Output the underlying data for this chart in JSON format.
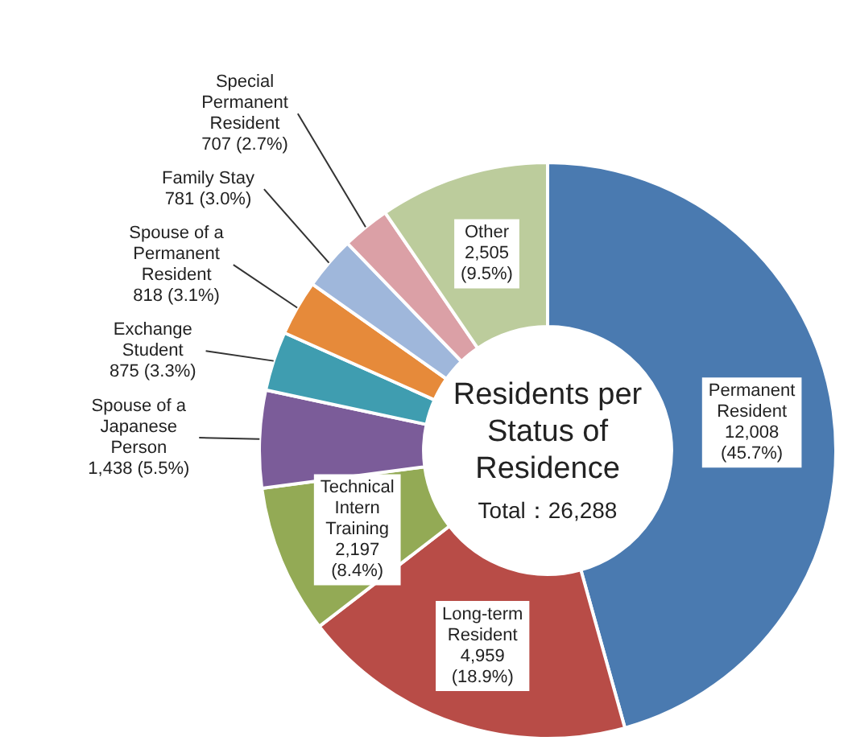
{
  "chart_data": {
    "type": "donut",
    "title": "Residents per Status of Residence",
    "annotations": [
      "Total：26,288"
    ],
    "categories": [
      "Permanent Resident",
      "Long-term Resident",
      "Technical Intern Training",
      "Spouse of a Japanese Person",
      "Exchange Student",
      "Spouse of a Permanent Resident",
      "Family Stay",
      "Special Permanent Resident",
      "Other"
    ],
    "values": [
      12008,
      4959,
      2197,
      1438,
      875,
      818,
      781,
      707,
      2505
    ],
    "value_labels": [
      "12,008 (45.7%)",
      "4,959 (18.9%)",
      "2,197 (8.4%)",
      "1,438 (5.5%)",
      "875 (3.3%)",
      "818 (3.1%)",
      "781 (3.0%)",
      "707 (2.7%)",
      "2,505 (9.5%)"
    ],
    "colors": [
      "#4a7ab0",
      "#b84c47",
      "#93aa55",
      "#7b5c99",
      "#3f9db0",
      "#e68a3a",
      "#9fb7db",
      "#dba0a6",
      "#bccc9c"
    ],
    "legend": false
  }
}
